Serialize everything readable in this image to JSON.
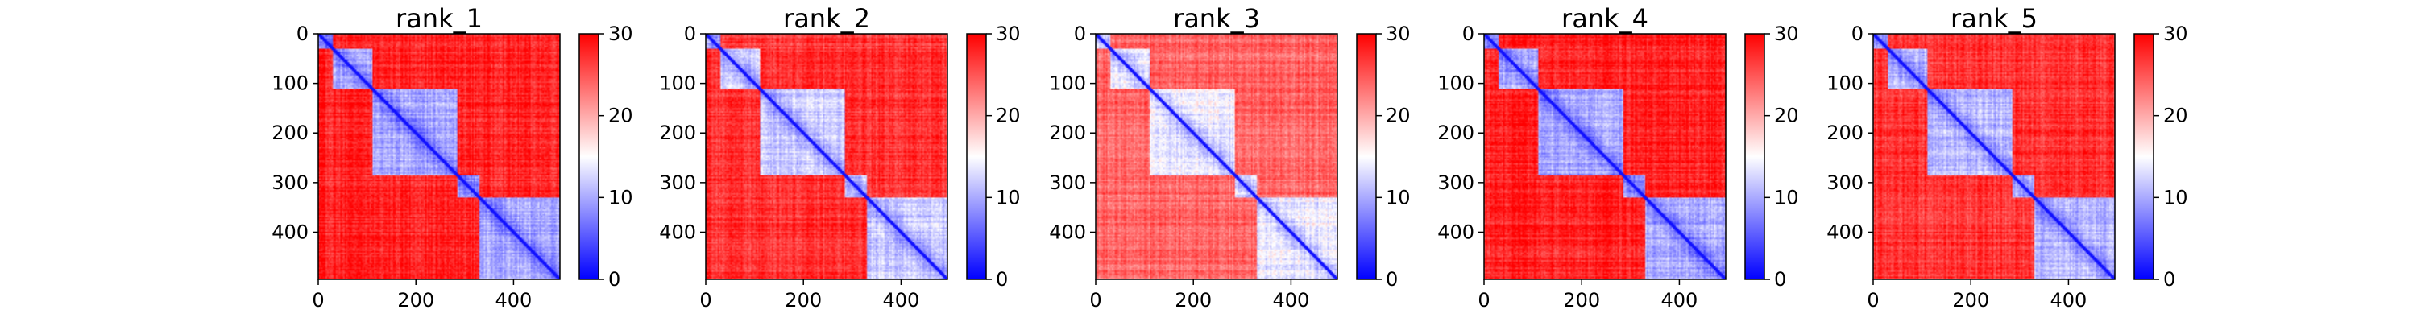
{
  "chart_data": [
    {
      "type": "heatmap",
      "title": "rank_1",
      "xlabel": "",
      "ylabel": "",
      "x_ticks": [
        0,
        200,
        400
      ],
      "y_ticks": [
        0,
        100,
        200,
        300,
        400
      ],
      "xlim": [
        0,
        495
      ],
      "ylim": [
        495,
        0
      ],
      "colorbar": {
        "colormap": "bwr",
        "min": 0,
        "max": 30,
        "ticks": [
          0,
          10,
          20,
          30
        ]
      },
      "domains": [
        [
          0,
          30
        ],
        [
          30,
          110
        ],
        [
          110,
          285
        ],
        [
          285,
          330
        ],
        [
          330,
          495
        ]
      ],
      "inter_domain_level": 28,
      "intra_domain_level": 6
    },
    {
      "type": "heatmap",
      "title": "rank_2",
      "xlabel": "",
      "ylabel": "",
      "x_ticks": [
        0,
        200,
        400
      ],
      "y_ticks": [
        0,
        100,
        200,
        300,
        400
      ],
      "xlim": [
        0,
        495
      ],
      "ylim": [
        495,
        0
      ],
      "colorbar": {
        "colormap": "bwr",
        "min": 0,
        "max": 30,
        "ticks": [
          0,
          10,
          20,
          30
        ]
      },
      "domains": [
        [
          0,
          30
        ],
        [
          30,
          110
        ],
        [
          110,
          285
        ],
        [
          285,
          330
        ],
        [
          330,
          495
        ]
      ],
      "inter_domain_level": 27,
      "intra_domain_level": 8
    },
    {
      "type": "heatmap",
      "title": "rank_3",
      "xlabel": "",
      "ylabel": "",
      "x_ticks": [
        0,
        200,
        400
      ],
      "y_ticks": [
        0,
        100,
        200,
        300,
        400
      ],
      "xlim": [
        0,
        495
      ],
      "ylim": [
        495,
        0
      ],
      "colorbar": {
        "colormap": "bwr",
        "min": 0,
        "max": 30,
        "ticks": [
          0,
          10,
          20,
          30
        ]
      },
      "domains": [
        [
          0,
          30
        ],
        [
          30,
          110
        ],
        [
          110,
          285
        ],
        [
          285,
          330
        ],
        [
          330,
          495
        ]
      ],
      "inter_domain_level": 24,
      "intra_domain_level": 10
    },
    {
      "type": "heatmap",
      "title": "rank_4",
      "xlabel": "",
      "ylabel": "",
      "x_ticks": [
        0,
        200,
        400
      ],
      "y_ticks": [
        0,
        100,
        200,
        300,
        400
      ],
      "xlim": [
        0,
        495
      ],
      "ylim": [
        495,
        0
      ],
      "colorbar": {
        "colormap": "bwr",
        "min": 0,
        "max": 30,
        "ticks": [
          0,
          10,
          20,
          30
        ]
      },
      "domains": [
        [
          0,
          30
        ],
        [
          30,
          110
        ],
        [
          110,
          285
        ],
        [
          285,
          330
        ],
        [
          330,
          495
        ]
      ],
      "inter_domain_level": 28,
      "intra_domain_level": 6
    },
    {
      "type": "heatmap",
      "title": "rank_5",
      "xlabel": "",
      "ylabel": "",
      "x_ticks": [
        0,
        200,
        400
      ],
      "y_ticks": [
        0,
        100,
        200,
        300,
        400
      ],
      "xlim": [
        0,
        495
      ],
      "ylim": [
        495,
        0
      ],
      "colorbar": {
        "colormap": "bwr",
        "min": 0,
        "max": 30,
        "ticks": [
          0,
          10,
          20,
          30
        ]
      },
      "domains": [
        [
          0,
          30
        ],
        [
          30,
          110
        ],
        [
          110,
          285
        ],
        [
          285,
          330
        ],
        [
          330,
          495
        ]
      ],
      "inter_domain_level": 27,
      "intra_domain_level": 7
    }
  ]
}
